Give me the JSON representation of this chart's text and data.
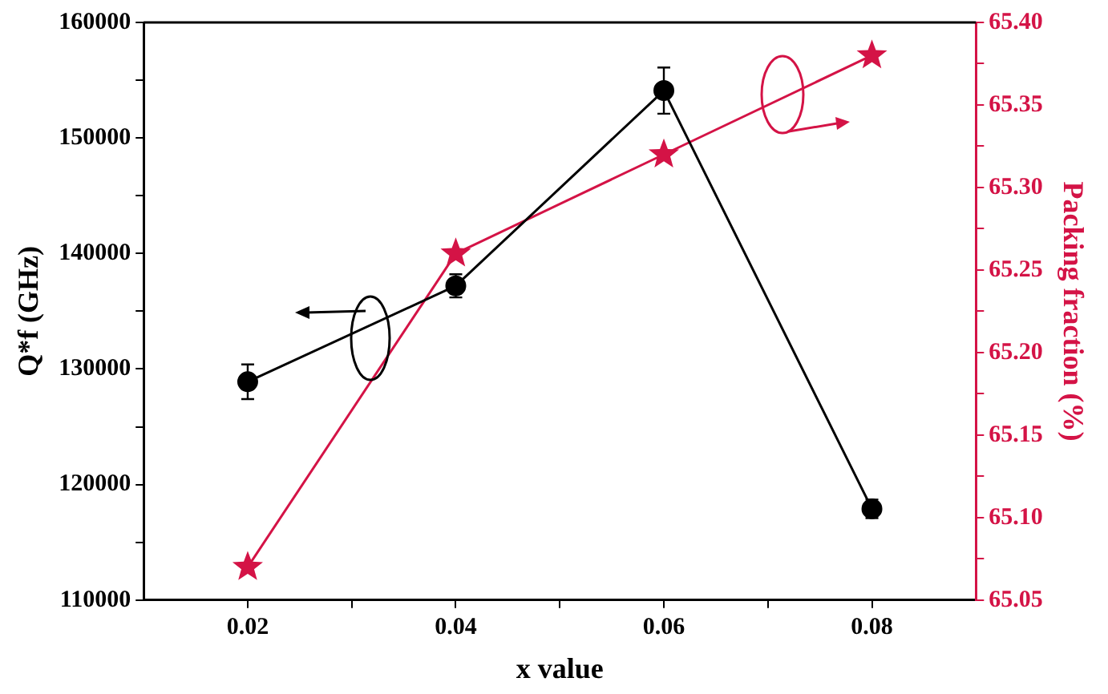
{
  "chart_data": {
    "type": "line",
    "xlabel": "x value",
    "ylabel": "Q*f (GHz)",
    "y2label": "Packing fraction (%)",
    "x": [
      0.02,
      0.04,
      0.06,
      0.08
    ],
    "xlim": [
      0.01,
      0.09
    ],
    "xticks": [
      0.02,
      {
        "value": 0.03,
        "label": null
      },
      0.04,
      {
        "value": 0.05,
        "label": null
      },
      0.06,
      {
        "value": 0.07,
        "label": null
      },
      0.08
    ],
    "ylim": [
      110000,
      160000
    ],
    "yticks": [
      110000,
      {
        "value": 115000,
        "label": null
      },
      120000,
      {
        "value": 125000,
        "label": null
      },
      130000,
      {
        "value": 135000,
        "label": null
      },
      140000,
      {
        "value": 145000,
        "label": null
      },
      150000,
      {
        "value": 155000,
        "label": null
      },
      160000
    ],
    "y2lim": [
      65.05,
      65.4
    ],
    "y2ticks": [
      {
        "value": 65.05,
        "label": "65.05"
      },
      {
        "value": 65.075,
        "label": null
      },
      {
        "value": 65.1,
        "label": "65.10"
      },
      {
        "value": 65.125,
        "label": null
      },
      {
        "value": 65.15,
        "label": "65.15"
      },
      {
        "value": 65.175,
        "label": null
      },
      {
        "value": 65.2,
        "label": "65.20"
      },
      {
        "value": 65.225,
        "label": null
      },
      {
        "value": 65.25,
        "label": "65.25"
      },
      {
        "value": 65.275,
        "label": null
      },
      {
        "value": 65.3,
        "label": "65.30"
      },
      {
        "value": 65.325,
        "label": null
      },
      {
        "value": 65.35,
        "label": "65.35"
      },
      {
        "value": 65.375,
        "label": null
      },
      {
        "value": 65.4,
        "label": "65.40"
      }
    ],
    "series": [
      {
        "color": "#000000",
        "values": [
          128900,
          137200,
          154100,
          117900
        ],
        "errors": [
          1500,
          1000,
          2000,
          800
        ],
        "marker": "circle"
      },
      {
        "color": "#d41346",
        "values": [
          65.07,
          65.26,
          65.32,
          65.38
        ],
        "axis": "y2",
        "marker": "star"
      }
    ],
    "grid": false,
    "legend": false
  }
}
